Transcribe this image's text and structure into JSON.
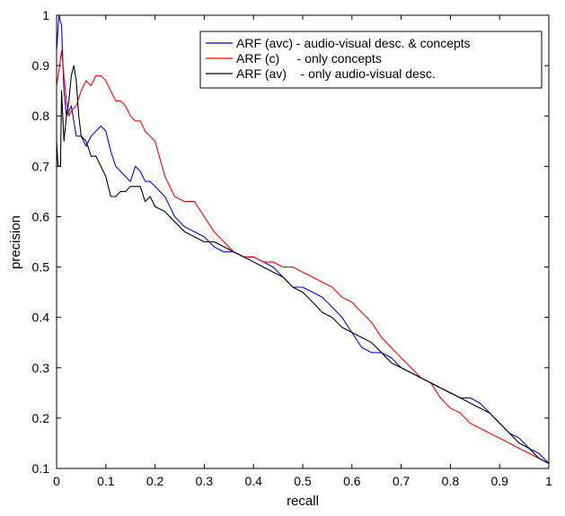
{
  "chart_data": {
    "type": "line",
    "xlabel": "recall",
    "ylabel": "precision",
    "xlim": [
      0,
      1
    ],
    "ylim": [
      0.1,
      1
    ],
    "xticks": [
      "0",
      "0.1",
      "0.2",
      "0.3",
      "0.4",
      "0.5",
      "0.6",
      "0.7",
      "0.8",
      "0.9",
      "1"
    ],
    "yticks": [
      "0.1",
      "0.2",
      "0.3",
      "0.4",
      "0.5",
      "0.6",
      "0.7",
      "0.8",
      "0.9",
      "1"
    ],
    "grid": false,
    "legend_position": "top-right",
    "series": [
      {
        "name": "ARF (avc) - audio-visual desc. & concepts",
        "color": "#0000ff",
        "points": [
          [
            0,
            0.93
          ],
          [
            0.005,
            1.0
          ],
          [
            0.01,
            0.98
          ],
          [
            0.015,
            0.85
          ],
          [
            0.02,
            0.8
          ],
          [
            0.03,
            0.82
          ],
          [
            0.04,
            0.76
          ],
          [
            0.05,
            0.76
          ],
          [
            0.06,
            0.74
          ],
          [
            0.07,
            0.76
          ],
          [
            0.08,
            0.77
          ],
          [
            0.09,
            0.78
          ],
          [
            0.1,
            0.77
          ],
          [
            0.11,
            0.73
          ],
          [
            0.12,
            0.7
          ],
          [
            0.13,
            0.69
          ],
          [
            0.14,
            0.68
          ],
          [
            0.15,
            0.67
          ],
          [
            0.16,
            0.7
          ],
          [
            0.17,
            0.69
          ],
          [
            0.18,
            0.67
          ],
          [
            0.19,
            0.67
          ],
          [
            0.2,
            0.66
          ],
          [
            0.22,
            0.64
          ],
          [
            0.24,
            0.6
          ],
          [
            0.26,
            0.58
          ],
          [
            0.28,
            0.57
          ],
          [
            0.3,
            0.56
          ],
          [
            0.32,
            0.54
          ],
          [
            0.34,
            0.53
          ],
          [
            0.36,
            0.53
          ],
          [
            0.38,
            0.52
          ],
          [
            0.4,
            0.52
          ],
          [
            0.42,
            0.51
          ],
          [
            0.44,
            0.5
          ],
          [
            0.46,
            0.48
          ],
          [
            0.48,
            0.46
          ],
          [
            0.5,
            0.46
          ],
          [
            0.52,
            0.45
          ],
          [
            0.54,
            0.44
          ],
          [
            0.56,
            0.42
          ],
          [
            0.58,
            0.4
          ],
          [
            0.6,
            0.37
          ],
          [
            0.62,
            0.34
          ],
          [
            0.64,
            0.33
          ],
          [
            0.66,
            0.33
          ],
          [
            0.68,
            0.32
          ],
          [
            0.7,
            0.3
          ],
          [
            0.72,
            0.29
          ],
          [
            0.74,
            0.28
          ],
          [
            0.76,
            0.27
          ],
          [
            0.78,
            0.26
          ],
          [
            0.8,
            0.25
          ],
          [
            0.82,
            0.24
          ],
          [
            0.84,
            0.24
          ],
          [
            0.86,
            0.23
          ],
          [
            0.88,
            0.21
          ],
          [
            0.9,
            0.19
          ],
          [
            0.92,
            0.17
          ],
          [
            0.94,
            0.16
          ],
          [
            0.96,
            0.14
          ],
          [
            0.98,
            0.13
          ],
          [
            1.0,
            0.11
          ]
        ]
      },
      {
        "name": "ARF (c)     - only concepts",
        "color": "#ff0000",
        "points": [
          [
            0,
            0.86
          ],
          [
            0.005,
            0.89
          ],
          [
            0.01,
            0.93
          ],
          [
            0.015,
            0.88
          ],
          [
            0.02,
            0.83
          ],
          [
            0.025,
            0.8
          ],
          [
            0.03,
            0.81
          ],
          [
            0.04,
            0.82
          ],
          [
            0.05,
            0.85
          ],
          [
            0.06,
            0.87
          ],
          [
            0.07,
            0.86
          ],
          [
            0.08,
            0.88
          ],
          [
            0.09,
            0.88
          ],
          [
            0.1,
            0.87
          ],
          [
            0.11,
            0.85
          ],
          [
            0.12,
            0.83
          ],
          [
            0.13,
            0.83
          ],
          [
            0.14,
            0.82
          ],
          [
            0.15,
            0.8
          ],
          [
            0.16,
            0.79
          ],
          [
            0.17,
            0.79
          ],
          [
            0.18,
            0.77
          ],
          [
            0.19,
            0.76
          ],
          [
            0.2,
            0.75
          ],
          [
            0.22,
            0.68
          ],
          [
            0.24,
            0.64
          ],
          [
            0.26,
            0.63
          ],
          [
            0.28,
            0.63
          ],
          [
            0.3,
            0.6
          ],
          [
            0.32,
            0.57
          ],
          [
            0.34,
            0.55
          ],
          [
            0.36,
            0.53
          ],
          [
            0.38,
            0.52
          ],
          [
            0.4,
            0.52
          ],
          [
            0.42,
            0.51
          ],
          [
            0.44,
            0.51
          ],
          [
            0.46,
            0.5
          ],
          [
            0.48,
            0.5
          ],
          [
            0.5,
            0.49
          ],
          [
            0.52,
            0.48
          ],
          [
            0.54,
            0.47
          ],
          [
            0.56,
            0.46
          ],
          [
            0.58,
            0.44
          ],
          [
            0.6,
            0.43
          ],
          [
            0.62,
            0.41
          ],
          [
            0.64,
            0.39
          ],
          [
            0.66,
            0.36
          ],
          [
            0.68,
            0.34
          ],
          [
            0.7,
            0.32
          ],
          [
            0.72,
            0.3
          ],
          [
            0.74,
            0.28
          ],
          [
            0.76,
            0.27
          ],
          [
            0.78,
            0.24
          ],
          [
            0.8,
            0.22
          ],
          [
            0.82,
            0.21
          ],
          [
            0.84,
            0.19
          ],
          [
            0.86,
            0.18
          ],
          [
            0.88,
            0.17
          ],
          [
            0.9,
            0.16
          ],
          [
            0.92,
            0.15
          ],
          [
            0.94,
            0.14
          ],
          [
            0.96,
            0.13
          ],
          [
            0.98,
            0.12
          ],
          [
            1.0,
            0.11
          ]
        ]
      },
      {
        "name": "ARF (av)    - only audio-visual desc.",
        "color": "#000000",
        "points": [
          [
            0,
            0.75
          ],
          [
            0.003,
            0.7
          ],
          [
            0.008,
            0.7
          ],
          [
            0.01,
            0.85
          ],
          [
            0.015,
            0.75
          ],
          [
            0.02,
            0.8
          ],
          [
            0.025,
            0.83
          ],
          [
            0.03,
            0.88
          ],
          [
            0.035,
            0.9
          ],
          [
            0.04,
            0.87
          ],
          [
            0.045,
            0.8
          ],
          [
            0.05,
            0.76
          ],
          [
            0.06,
            0.75
          ],
          [
            0.07,
            0.72
          ],
          [
            0.08,
            0.72
          ],
          [
            0.09,
            0.7
          ],
          [
            0.1,
            0.68
          ],
          [
            0.11,
            0.64
          ],
          [
            0.12,
            0.64
          ],
          [
            0.13,
            0.65
          ],
          [
            0.14,
            0.65
          ],
          [
            0.15,
            0.66
          ],
          [
            0.16,
            0.66
          ],
          [
            0.17,
            0.66
          ],
          [
            0.18,
            0.63
          ],
          [
            0.19,
            0.64
          ],
          [
            0.2,
            0.62
          ],
          [
            0.22,
            0.61
          ],
          [
            0.24,
            0.59
          ],
          [
            0.26,
            0.57
          ],
          [
            0.28,
            0.56
          ],
          [
            0.3,
            0.55
          ],
          [
            0.32,
            0.55
          ],
          [
            0.34,
            0.54
          ],
          [
            0.36,
            0.53
          ],
          [
            0.38,
            0.52
          ],
          [
            0.4,
            0.51
          ],
          [
            0.42,
            0.5
          ],
          [
            0.44,
            0.49
          ],
          [
            0.46,
            0.48
          ],
          [
            0.48,
            0.46
          ],
          [
            0.5,
            0.45
          ],
          [
            0.52,
            0.43
          ],
          [
            0.54,
            0.41
          ],
          [
            0.56,
            0.4
          ],
          [
            0.58,
            0.38
          ],
          [
            0.6,
            0.37
          ],
          [
            0.62,
            0.36
          ],
          [
            0.64,
            0.35
          ],
          [
            0.66,
            0.33
          ],
          [
            0.68,
            0.31
          ],
          [
            0.7,
            0.3
          ],
          [
            0.72,
            0.29
          ],
          [
            0.74,
            0.28
          ],
          [
            0.76,
            0.27
          ],
          [
            0.78,
            0.26
          ],
          [
            0.8,
            0.25
          ],
          [
            0.82,
            0.24
          ],
          [
            0.84,
            0.23
          ],
          [
            0.86,
            0.22
          ],
          [
            0.88,
            0.21
          ],
          [
            0.9,
            0.19
          ],
          [
            0.92,
            0.17
          ],
          [
            0.94,
            0.15
          ],
          [
            0.96,
            0.14
          ],
          [
            0.98,
            0.12
          ],
          [
            1.0,
            0.11
          ]
        ]
      }
    ]
  }
}
